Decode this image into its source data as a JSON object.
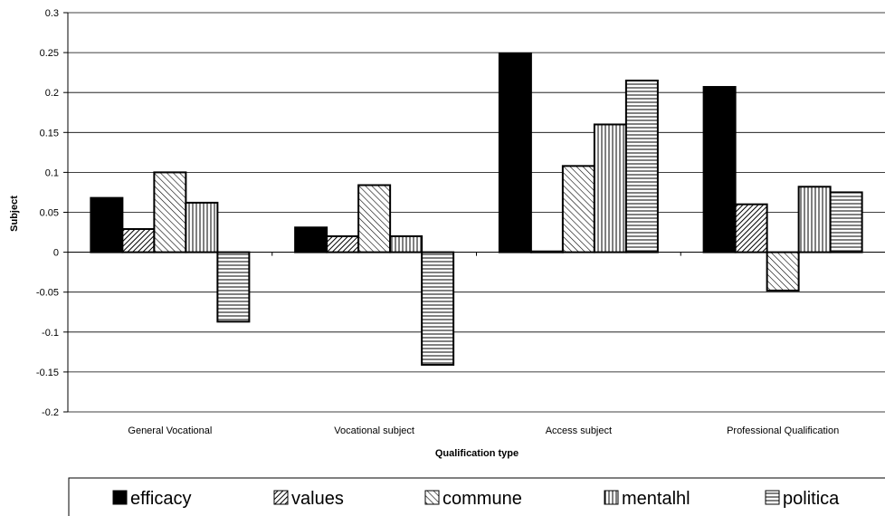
{
  "chart_data": {
    "type": "bar",
    "title": "",
    "xlabel": "Qualification type",
    "ylabel": "Subject",
    "categories": [
      "General Vocational",
      "Vocational subject",
      "Access subject",
      "Professional Qualification"
    ],
    "ylim": [
      -0.2,
      0.3
    ],
    "yticks": [
      -0.2,
      -0.15,
      -0.1,
      -0.05,
      0,
      0.05,
      0.1,
      0.15,
      0.2,
      0.25,
      0.3
    ],
    "ytick_labels": [
      "-0.2",
      "-0.15",
      "-0.1",
      "-0.05",
      "0",
      "0.05",
      "0.1",
      "0.15",
      "0.2",
      "0.25",
      "0.3"
    ],
    "grid": true,
    "legend_position": "bottom",
    "series": [
      {
        "name": "efficacy",
        "pattern": "solid",
        "values": [
          0.068,
          0.031,
          0.249,
          0.207
        ]
      },
      {
        "name": "values",
        "pattern": "diagonal-dense",
        "values": [
          0.029,
          0.02,
          0.001,
          0.06
        ]
      },
      {
        "name": "commune",
        "pattern": "diagonal",
        "values": [
          0.1,
          0.084,
          0.108,
          -0.048
        ]
      },
      {
        "name": "mentalhl",
        "pattern": "vertical",
        "values": [
          0.062,
          0.02,
          0.16,
          0.082
        ]
      },
      {
        "name": "politica",
        "pattern": "horizontal",
        "values": [
          -0.087,
          -0.141,
          0.215,
          0.075
        ]
      }
    ]
  }
}
